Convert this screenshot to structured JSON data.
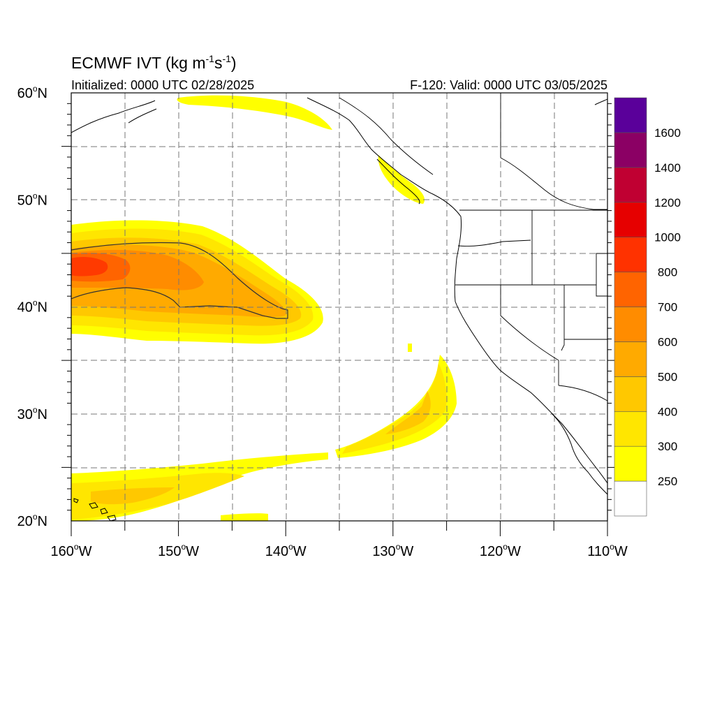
{
  "title": {
    "main": "ECMWF IVT (kg m",
    "sup1": "-1",
    "mid": "s",
    "sup2": "-1",
    "end": ")"
  },
  "subtitle_left": "Initialized: 0000 UTC 02/28/2025",
  "subtitle_right": "F-120: Valid: 0000 UTC 03/05/2025",
  "map": {
    "lon_range": [
      -160,
      -110
    ],
    "lat_range": [
      20,
      60
    ],
    "grid": "dashed, every 5 degrees",
    "lon_ticks": [
      {
        "lon": -160,
        "num": "160",
        "hem": "W"
      },
      {
        "lon": -150,
        "num": "150",
        "hem": "W"
      },
      {
        "lon": -140,
        "num": "140",
        "hem": "W"
      },
      {
        "lon": -130,
        "num": "130",
        "hem": "W"
      },
      {
        "lon": -120,
        "num": "120",
        "hem": "W"
      },
      {
        "lon": -110,
        "num": "110",
        "hem": "W"
      }
    ],
    "lat_ticks": [
      {
        "lat": 60,
        "num": "60",
        "hem": "N"
      },
      {
        "lat": 50,
        "num": "50",
        "hem": "N"
      },
      {
        "lat": 40,
        "num": "40",
        "hem": "N"
      },
      {
        "lat": 30,
        "num": "30",
        "hem": "N"
      },
      {
        "lat": 20,
        "num": "20",
        "hem": "N"
      }
    ]
  },
  "colorbar": {
    "levels": [
      "250",
      "300",
      "400",
      "500",
      "600",
      "700",
      "800",
      "1000",
      "1200",
      "1400",
      "1600"
    ],
    "colors": [
      "#ffffff",
      "#ffff00",
      "#ffe600",
      "#ffc800",
      "#ffaa00",
      "#ff8c00",
      "#ff6400",
      "#ff3200",
      "#e60000",
      "#c00032",
      "#8b0064",
      "#5a009a"
    ]
  }
}
